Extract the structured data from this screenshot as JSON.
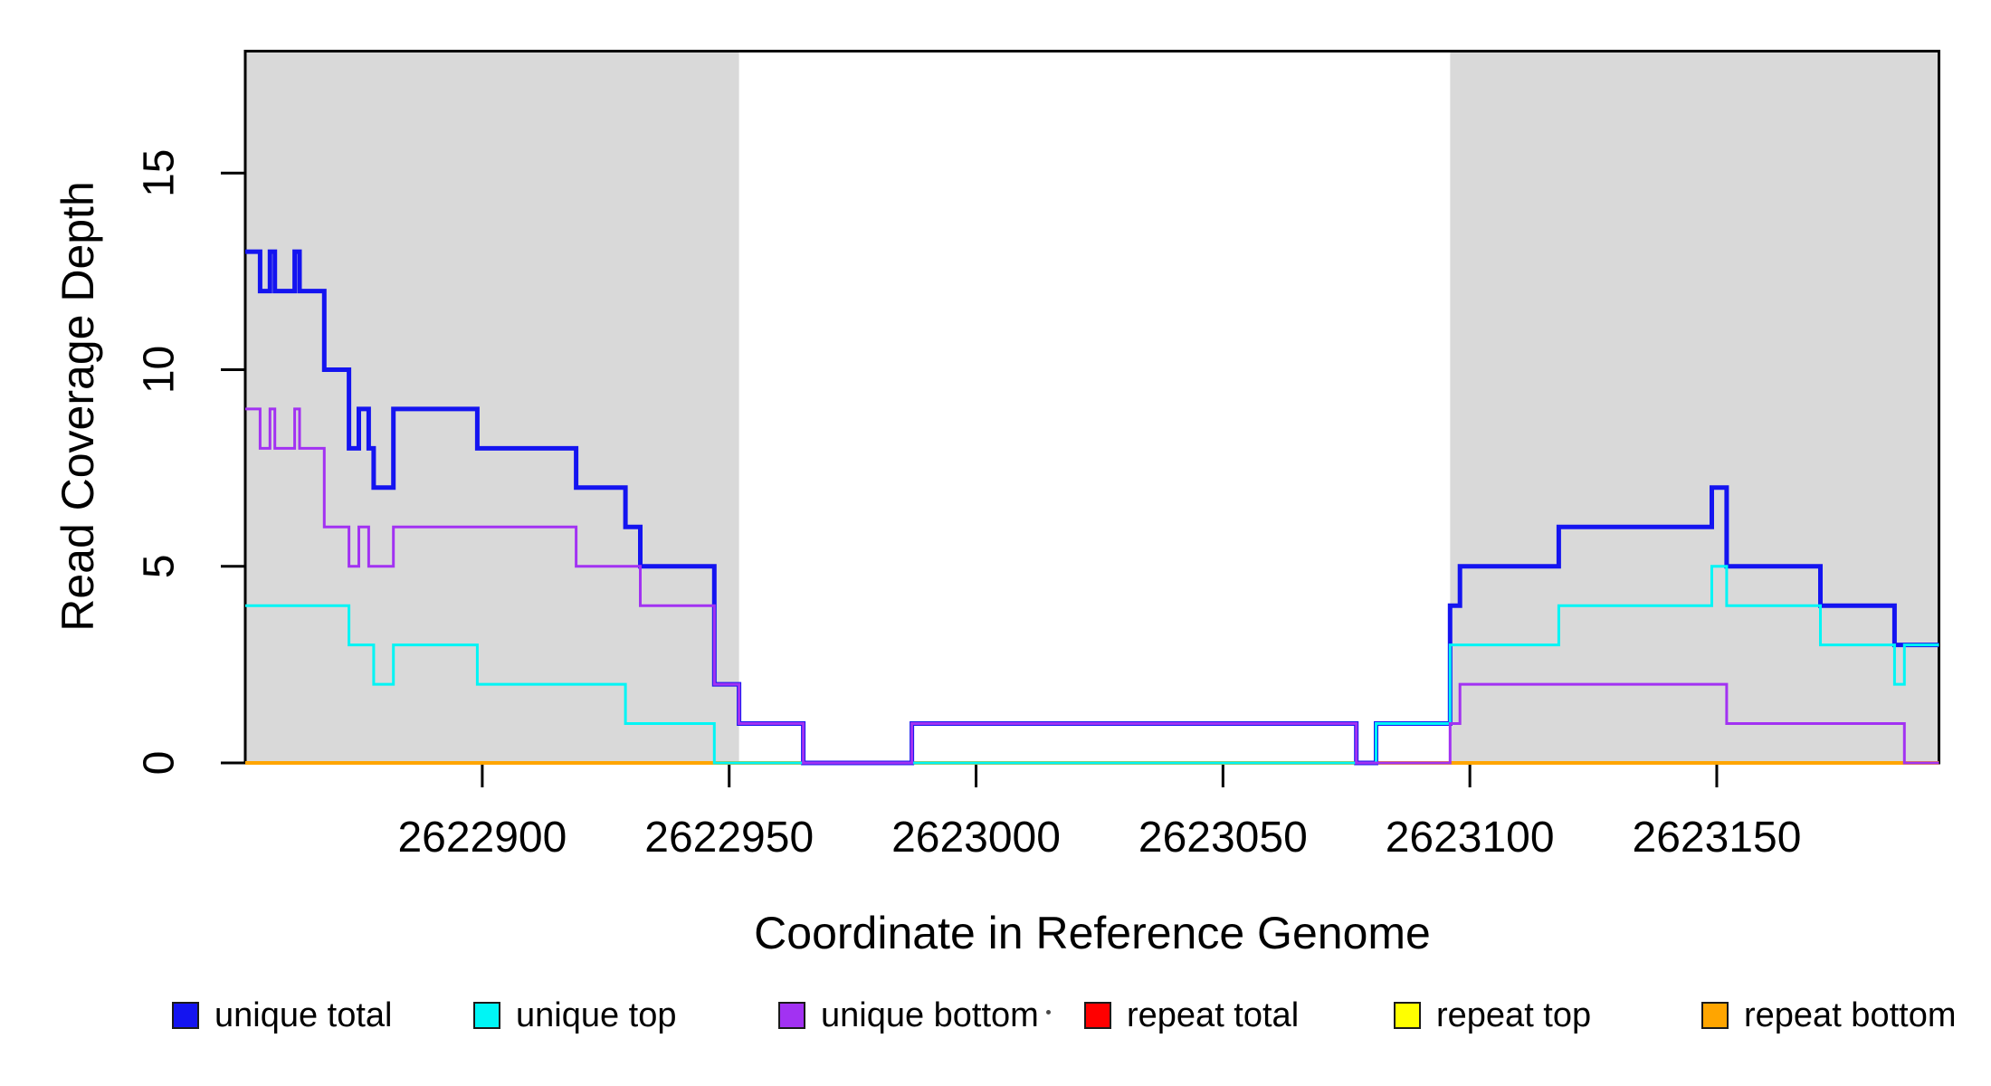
{
  "chart_data": {
    "type": "line",
    "subtype": "step-post-coverage",
    "title": "",
    "xlabel": "Coordinate in Reference Genome",
    "ylabel": "Read Coverage Depth",
    "xlim": [
      2622852,
      2623195
    ],
    "ylim": [
      0,
      18.1
    ],
    "xticks": [
      2622900,
      2622950,
      2623000,
      2623050,
      2623100,
      2623150
    ],
    "xtick_labels": [
      "2622900",
      "2622950",
      "2623000",
      "2623050",
      "2623100",
      "2623150"
    ],
    "yticks": [
      0,
      5,
      10,
      15
    ],
    "ytick_labels": [
      "0",
      "5",
      "10",
      "15"
    ],
    "grid": false,
    "background_color": "#ffffff",
    "box_color": "#000000",
    "highlight_regions": [
      {
        "name": "left-shaded-region",
        "start": 2622852,
        "end": 2622952,
        "color": "#d9d9d9"
      },
      {
        "name": "right-shaded-region",
        "start": 2623096,
        "end": 2623195,
        "color": "#d9d9d9"
      }
    ],
    "draw_order": [
      "repeat total",
      "repeat top",
      "repeat bottom",
      "unique total",
      "unique top",
      "unique bottom"
    ],
    "series": [
      {
        "name": "unique total",
        "color": "#1414f0",
        "line_width": 5,
        "steps": [
          [
            2622852,
            13
          ],
          [
            2622855,
            12
          ],
          [
            2622857,
            13
          ],
          [
            2622858,
            12
          ],
          [
            2622862,
            13
          ],
          [
            2622863,
            12
          ],
          [
            2622868,
            10
          ],
          [
            2622873,
            8
          ],
          [
            2622875,
            9
          ],
          [
            2622877,
            8
          ],
          [
            2622878,
            7
          ],
          [
            2622882,
            9
          ],
          [
            2622899,
            8
          ],
          [
            2622919,
            7
          ],
          [
            2622929,
            6
          ],
          [
            2622932,
            5
          ],
          [
            2622947,
            2
          ],
          [
            2622952,
            1
          ],
          [
            2622965,
            0
          ],
          [
            2622987,
            1
          ],
          [
            2623077,
            0
          ],
          [
            2623081,
            1
          ],
          [
            2623096,
            4
          ],
          [
            2623098,
            5
          ],
          [
            2623118,
            6
          ],
          [
            2623149,
            7
          ],
          [
            2623152,
            5
          ],
          [
            2623171,
            4
          ],
          [
            2623186,
            3
          ]
        ]
      },
      {
        "name": "unique top",
        "color": "#00f5f5",
        "line_width": 3,
        "steps": [
          [
            2622852,
            4
          ],
          [
            2622873,
            3
          ],
          [
            2622878,
            2
          ],
          [
            2622882,
            3
          ],
          [
            2622899,
            2
          ],
          [
            2622929,
            1
          ],
          [
            2622947,
            0
          ],
          [
            2623081,
            1
          ],
          [
            2623096,
            3
          ],
          [
            2623118,
            4
          ],
          [
            2623149,
            5
          ],
          [
            2623152,
            4
          ],
          [
            2623171,
            3
          ],
          [
            2623186,
            2
          ],
          [
            2623188,
            3
          ]
        ]
      },
      {
        "name": "unique bottom",
        "color": "#a232f2",
        "line_width": 3,
        "steps": [
          [
            2622852,
            9
          ],
          [
            2622855,
            8
          ],
          [
            2622857,
            9
          ],
          [
            2622858,
            8
          ],
          [
            2622862,
            9
          ],
          [
            2622863,
            8
          ],
          [
            2622868,
            6
          ],
          [
            2622873,
            5
          ],
          [
            2622875,
            6
          ],
          [
            2622877,
            5
          ],
          [
            2622882,
            6
          ],
          [
            2622919,
            5
          ],
          [
            2622932,
            4
          ],
          [
            2622947,
            2
          ],
          [
            2622952,
            1
          ],
          [
            2622965,
            0
          ],
          [
            2622987,
            1
          ],
          [
            2623077,
            0
          ],
          [
            2623096,
            1
          ],
          [
            2623098,
            2
          ],
          [
            2623152,
            1
          ],
          [
            2623188,
            0
          ]
        ]
      },
      {
        "name": "repeat total",
        "color": "#ff0000",
        "line_width": 3,
        "steps": [
          [
            2622852,
            0
          ]
        ]
      },
      {
        "name": "repeat top",
        "color": "#ffff00",
        "line_width": 3,
        "steps": [
          [
            2622852,
            0
          ]
        ]
      },
      {
        "name": "repeat bottom",
        "color": "#ffa500",
        "line_width": 4,
        "steps": [
          [
            2622852,
            0
          ]
        ]
      }
    ],
    "legend": {
      "position": "bottom",
      "entries": [
        {
          "label": "unique total",
          "color": "#1414f0"
        },
        {
          "label": "unique top",
          "color": "#00f5f5"
        },
        {
          "label": "unique bottom",
          "color": "#a232f2"
        },
        {
          "label": "repeat total",
          "color": "#ff0000"
        },
        {
          "label": "repeat top",
          "color": "#ffff00"
        },
        {
          "label": "repeat bottom",
          "color": "#ffa500"
        }
      ],
      "artifact_dot": {
        "present": true
      }
    }
  }
}
